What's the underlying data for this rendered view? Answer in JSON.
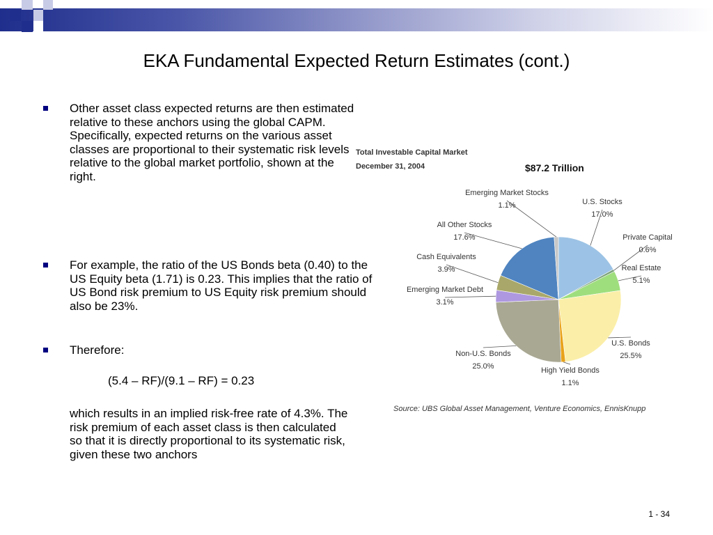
{
  "slide": {
    "title": "EKA Fundamental Expected Return Estimates (cont.)",
    "page_number": "1 - 34"
  },
  "bullets": [
    {
      "text": "Other asset class expected returns are then estimated relative to these anchors using the global CAPM.  Specifically, expected returns on the various asset classes are proportional to their systematic risk levels relative to the global market portfolio, shown at the right."
    },
    {
      "text": "For example, the ratio of the US Bonds beta (0.40) to the US Equity beta (1.71) is 0.23.  This implies that the ratio of US Bond risk premium to US Equity risk premium should also be 23%."
    },
    {
      "text": "Therefore:"
    }
  ],
  "formula": "(5.4 – RF)/(9.1 – RF) = 0.23",
  "conclusion": "which results in an implied risk-free rate of 4.3%.  The risk premium of each asset class is then calculated so that it is directly proportional to its systematic risk, given these two anchors",
  "colors": {
    "header_dark": "#1f2e8c",
    "bullet": "#000080"
  },
  "chart_data": {
    "type": "pie",
    "title": "Total Investable Capital Market",
    "subtitle": "December 31, 2004",
    "total_label": "$87.2 Trillion",
    "source": "Source: UBS Global Asset Management, Venture Economics, EnnisKnupp",
    "slices": [
      {
        "name": "U.S. Stocks",
        "value": 17.0,
        "value_label": "17.0%",
        "color": "#9cc3e5"
      },
      {
        "name": "Private Capital",
        "value": 0.6,
        "value_label": "0.6%",
        "color": "#7aa37a"
      },
      {
        "name": "Real Estate",
        "value": 5.1,
        "value_label": "5.1%",
        "color": "#9fde7d"
      },
      {
        "name": "U.S. Bonds",
        "value": 25.5,
        "value_label": "25.5%",
        "color": "#fbeea8"
      },
      {
        "name": "High Yield Bonds",
        "value": 1.1,
        "value_label": "1.1%",
        "color": "#e8a21a"
      },
      {
        "name": "Non-U.S. Bonds",
        "value": 25.0,
        "value_label": "25.0%",
        "color": "#a9a893"
      },
      {
        "name": "Emerging Market Debt",
        "value": 3.1,
        "value_label": "3.1%",
        "color": "#ae98e0"
      },
      {
        "name": "Cash Equivalents",
        "value": 3.9,
        "value_label": "3.9%",
        "color": "#a9a86a"
      },
      {
        "name": "All Other Stocks",
        "value": 17.6,
        "value_label": "17.6%",
        "color": "#4f84c0"
      },
      {
        "name": "Emerging Market Stocks",
        "value": 1.1,
        "value_label": "1.1%",
        "color": "#c8c8c8"
      }
    ]
  }
}
